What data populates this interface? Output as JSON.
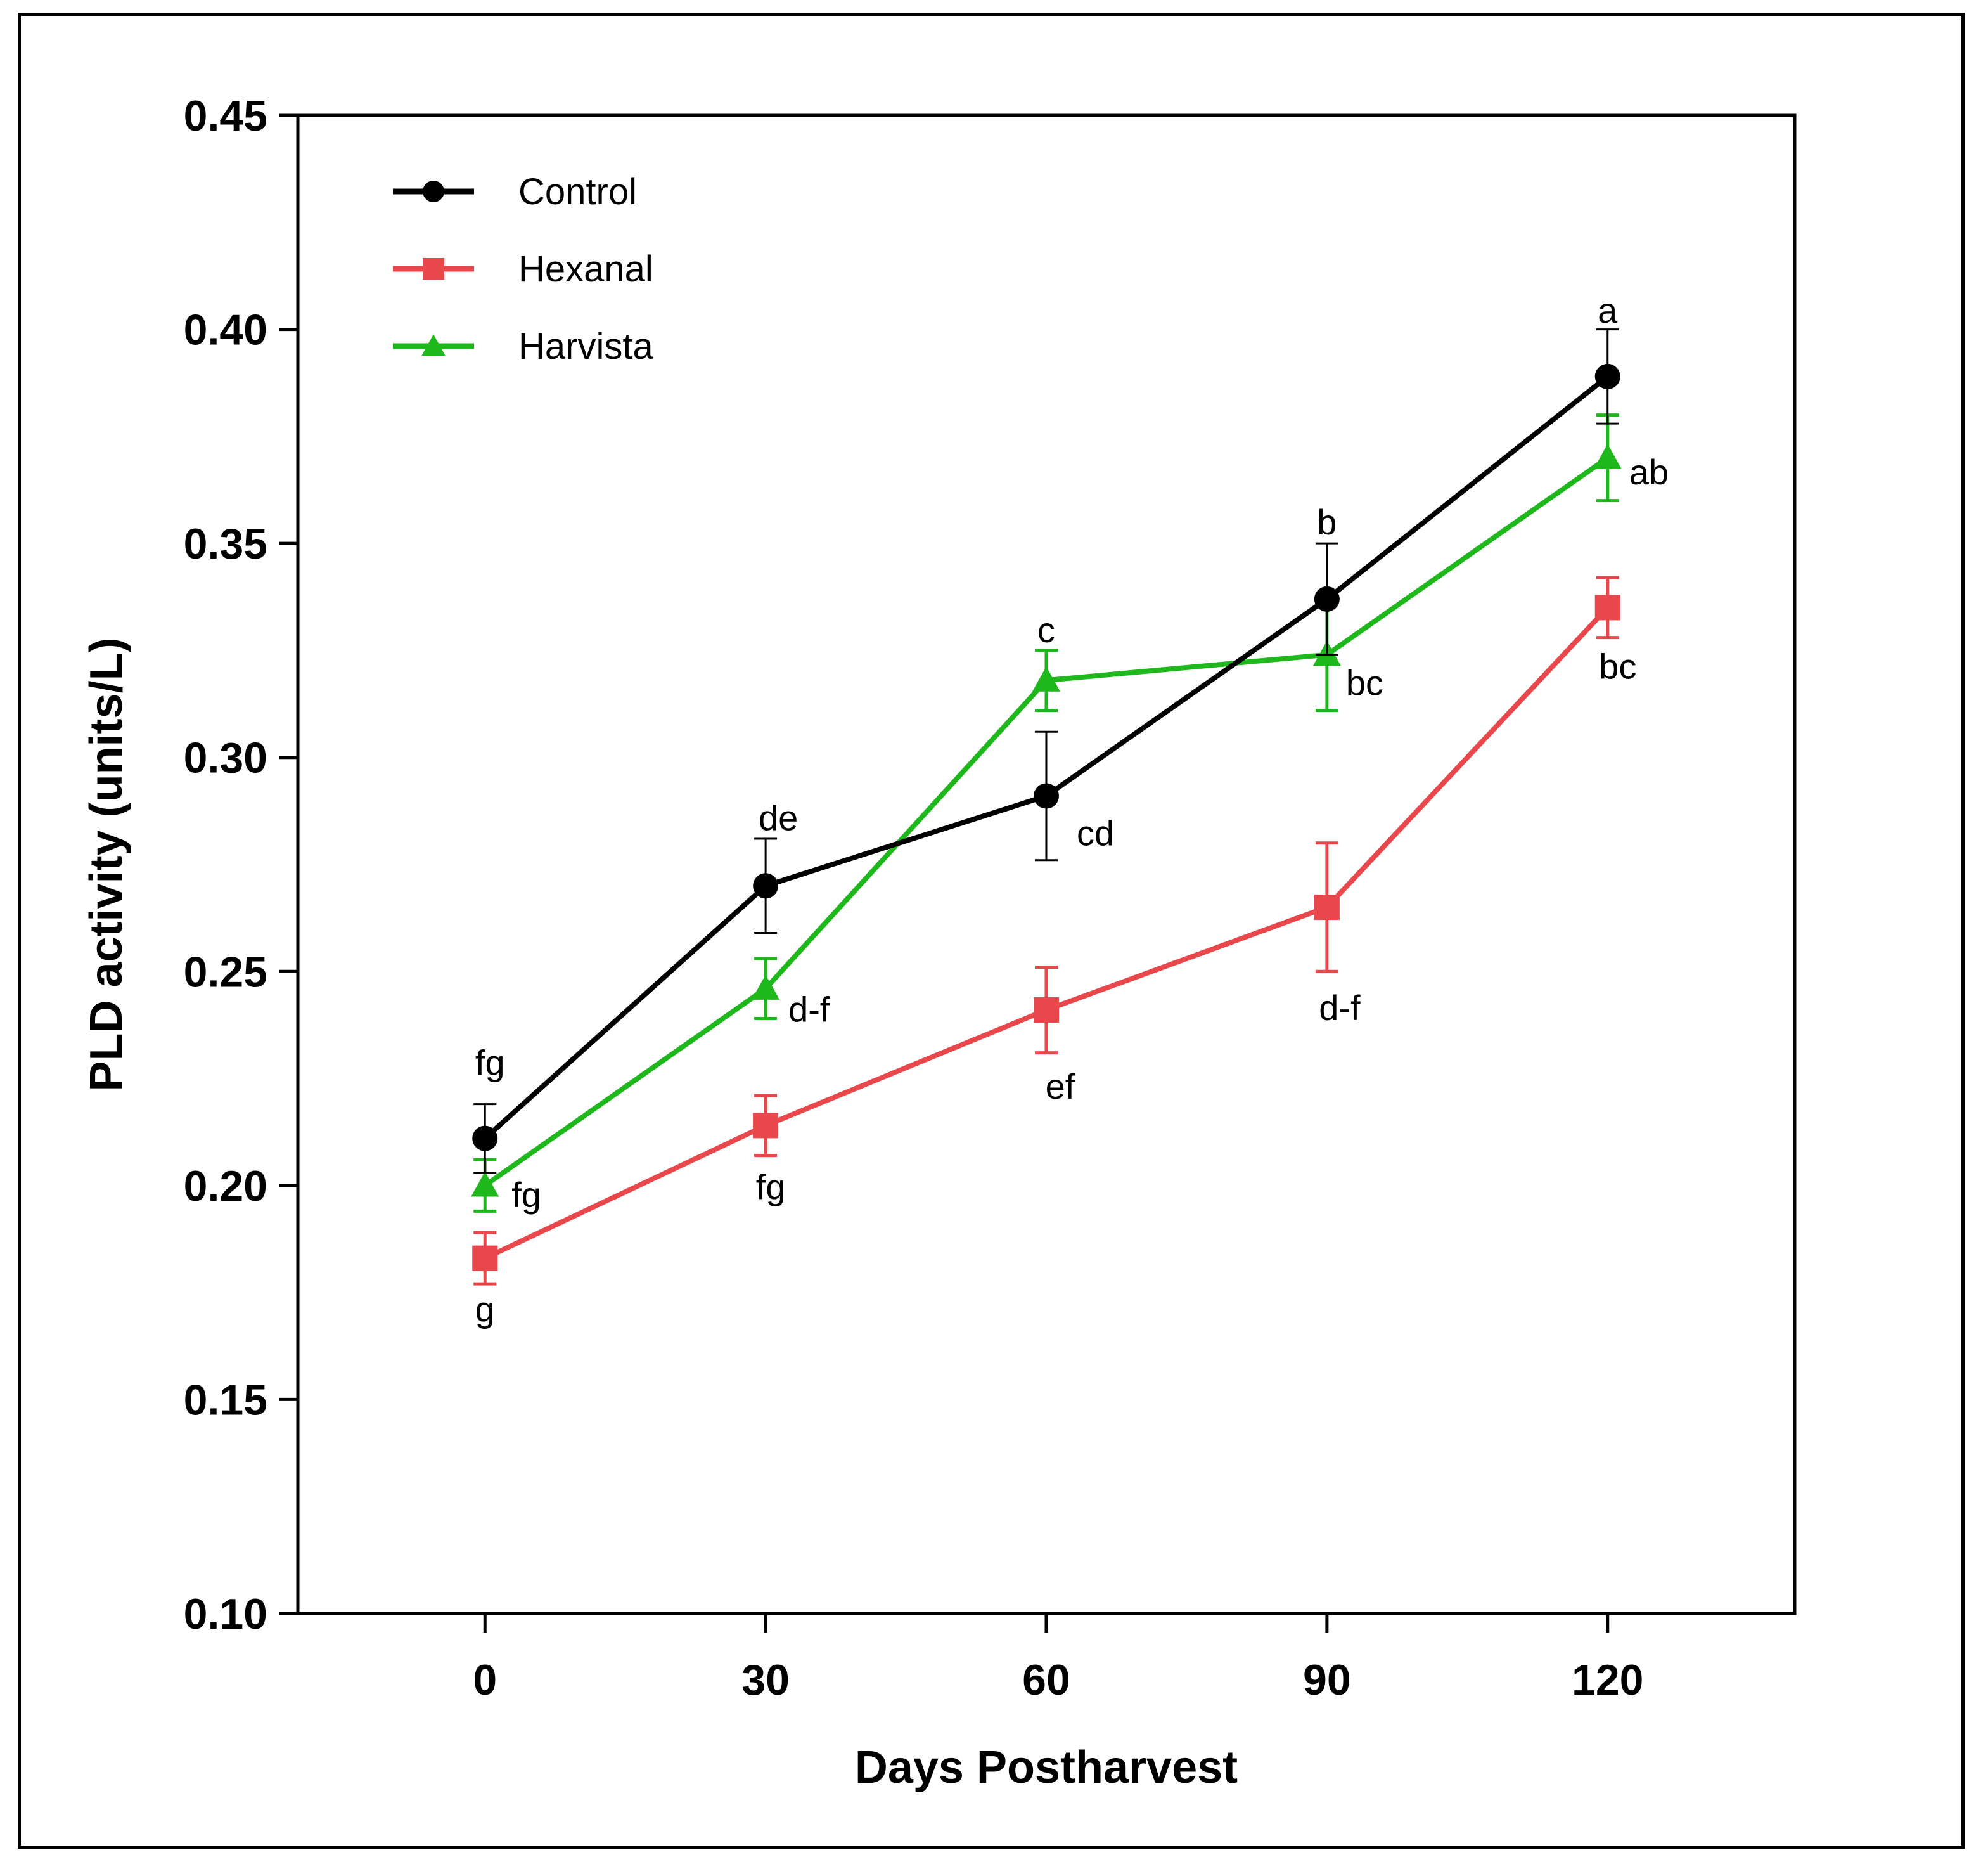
{
  "chart_data": {
    "type": "line",
    "title": "",
    "xlabel": "Days Postharvest",
    "ylabel": "PLD activity (units/L)",
    "x": [
      0,
      30,
      60,
      90,
      120
    ],
    "xticks": [
      "0",
      "30",
      "60",
      "90",
      "120"
    ],
    "xlim": [
      -20,
      140
    ],
    "ylim": [
      0.1,
      0.45
    ],
    "yticks": [
      "0.10",
      "0.15",
      "0.20",
      "0.25",
      "0.30",
      "0.35",
      "0.40",
      "0.45"
    ],
    "grid": false,
    "legend_position": "top-left",
    "series": [
      {
        "name": "Control",
        "color": "#000000",
        "marker": "circle",
        "values": [
          0.211,
          0.27,
          0.291,
          0.337,
          0.389
        ],
        "errors": [
          0.008,
          0.011,
          0.015,
          0.013,
          0.011
        ],
        "labels": [
          "fg",
          "de",
          "cd",
          "b",
          "a"
        ]
      },
      {
        "name": "Hexanal",
        "color": "#e8474b",
        "marker": "square",
        "values": [
          0.183,
          0.214,
          0.241,
          0.265,
          0.335
        ],
        "errors": [
          0.006,
          0.007,
          0.01,
          0.015,
          0.007
        ],
        "labels": [
          "g",
          "fg",
          "ef",
          "d-f",
          "bc"
        ]
      },
      {
        "name": "Harvista",
        "color": "#1fb81c",
        "marker": "triangle",
        "values": [
          0.2,
          0.246,
          0.318,
          0.324,
          0.37
        ],
        "errors": [
          0.006,
          0.007,
          0.007,
          0.013,
          0.01
        ],
        "labels": [
          "fg",
          "d-f",
          "c",
          "bc",
          "ab"
        ]
      }
    ]
  }
}
